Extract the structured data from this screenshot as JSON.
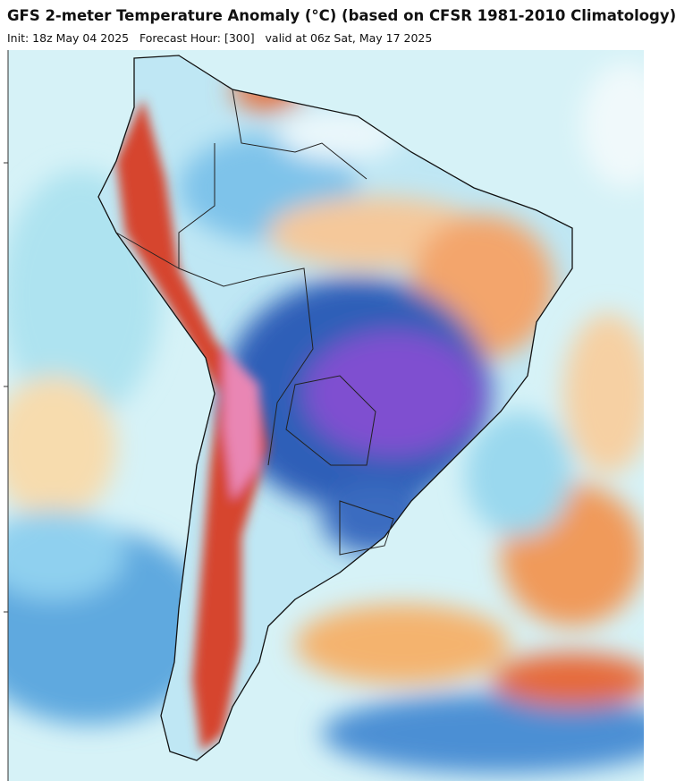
{
  "header": {
    "title": "GFS 2-meter Temperature Anomaly (°C) (based on CFSR 1981-2010 Climatology)",
    "subtitle": "Init: 18z May 04 2025   Forecast Hour: [300]   valid at 06z Sat, May 17 2025"
  }
}
